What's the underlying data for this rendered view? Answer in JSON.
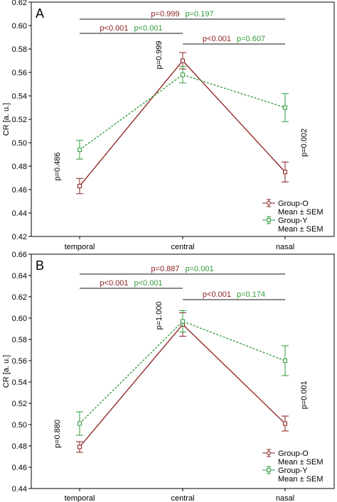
{
  "chart_data": [
    {
      "panel_label": "A",
      "type": "line",
      "categories": [
        "temporal",
        "central",
        "nasal"
      ],
      "ylabel": "CR [a. u.]",
      "ylim": [
        0.42,
        0.62
      ],
      "yticks": [
        "0.42",
        "0.44",
        "0.46",
        "0.48",
        "0.50",
        "0.52",
        "0.54",
        "0.56",
        "0.58",
        "0.60",
        "0.62"
      ],
      "series": [
        {
          "name": "Group-O",
          "legend_sub": "Mean ± SEM",
          "color": "#8b1c1c",
          "dash": false,
          "marker": "circle",
          "values": [
            0.463,
            0.57,
            0.475
          ],
          "sem": [
            0.0065,
            0.007,
            0.0085
          ]
        },
        {
          "name": "Group-Y",
          "legend_sub": "Mean ± SEM",
          "color": "#2e9b3a",
          "dash": true,
          "marker": "square",
          "values": [
            0.494,
            0.558,
            0.53
          ],
          "sem": [
            0.008,
            0.007,
            0.012
          ]
        }
      ],
      "legend_position": "bottom-right",
      "comparisons": [
        {
          "from": "temporal",
          "to": "nasal",
          "level": 1,
          "p_o": "p=0.999",
          "p_y": "p=0.197"
        },
        {
          "from": "temporal",
          "to": "central",
          "level": 2,
          "p_o": "p<0.001",
          "p_y": "p<0.001"
        },
        {
          "from": "central",
          "to": "nasal",
          "level": 3,
          "p_o": "p<0.001",
          "p_y": "p=0.607"
        }
      ],
      "vertical_pvalues": [
        {
          "category": "temporal",
          "text": "p=0.486"
        },
        {
          "category": "central",
          "text": "p=0.999"
        },
        {
          "category": "nasal",
          "text": "p=0.002"
        }
      ]
    },
    {
      "panel_label": "B",
      "type": "line",
      "categories": [
        "temporal",
        "central",
        "nasal"
      ],
      "ylabel": "CR [a. u.]",
      "ylim": [
        0.44,
        0.66
      ],
      "yticks": [
        "0.44",
        "0.46",
        "0.48",
        "0.50",
        "0.52",
        "0.54",
        "0.56",
        "0.58",
        "0.60",
        "0.62",
        "0.64",
        "0.66"
      ],
      "series": [
        {
          "name": "Group-O",
          "legend_sub": "Mean ± SEM",
          "color": "#8b1c1c",
          "dash": false,
          "marker": "circle",
          "values": [
            0.479,
            0.594,
            0.501
          ],
          "sem": [
            0.005,
            0.011,
            0.007
          ]
        },
        {
          "name": "Group-Y",
          "legend_sub": "Mean ± SEM",
          "color": "#2e9b3a",
          "dash": true,
          "marker": "square",
          "values": [
            0.501,
            0.597,
            0.56
          ],
          "sem": [
            0.011,
            0.01,
            0.014
          ]
        }
      ],
      "legend_position": "bottom-right",
      "comparisons": [
        {
          "from": "temporal",
          "to": "nasal",
          "level": 1,
          "p_o": "p=0.887",
          "p_y": "p=0.001"
        },
        {
          "from": "temporal",
          "to": "central",
          "level": 2,
          "p_o": "p<0.001",
          "p_y": "p<0.001"
        },
        {
          "from": "central",
          "to": "nasal",
          "level": 3,
          "p_o": "p<0.001",
          "p_y": "p=0.174"
        }
      ],
      "vertical_pvalues": [
        {
          "category": "temporal",
          "text": "p=0.880"
        },
        {
          "category": "central",
          "text": "p=1.000"
        },
        {
          "category": "nasal",
          "text": "p=0.001"
        }
      ]
    }
  ]
}
